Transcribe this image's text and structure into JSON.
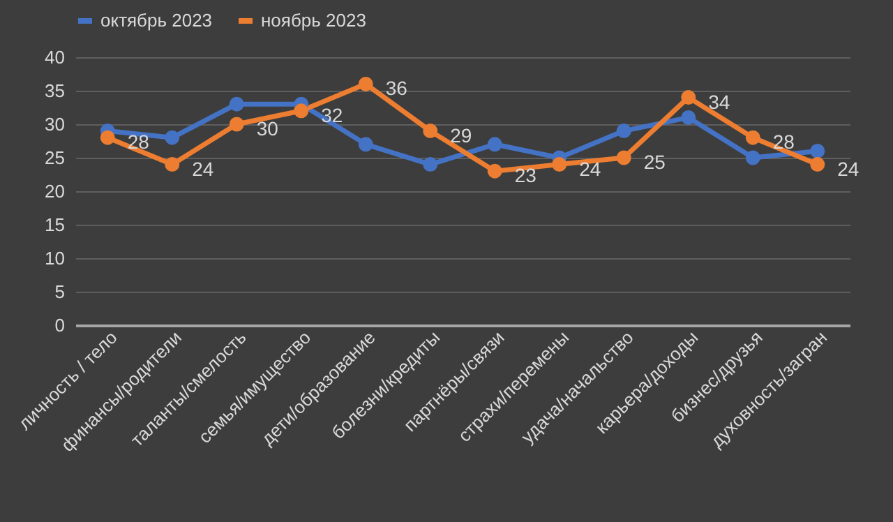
{
  "chart_data": {
    "type": "line",
    "categories": [
      "личность / тело",
      "финансы/родители",
      "таланты/смелость",
      "семья/имущество",
      "дети/образование",
      "болезни/кредиты",
      "партнёры/связи",
      "страхи/перемены",
      "удача/начальство",
      "карьера/доходы",
      "бизнес/друзья",
      "духовность/загран"
    ],
    "series": [
      {
        "name": "октябрь 2023",
        "color": "#4472c4",
        "values": [
          29,
          28,
          33,
          33,
          27,
          24,
          27,
          25,
          29,
          31,
          25,
          26
        ]
      },
      {
        "name": "ноябрь 2023",
        "color": "#ed7d31",
        "values": [
          28,
          24,
          30,
          32,
          36,
          29,
          23,
          24,
          25,
          34,
          28,
          24
        ],
        "value_labels": [
          "28",
          "24",
          "30",
          "32",
          "36",
          "29",
          "23",
          "24",
          "25",
          "34",
          "28",
          "24"
        ]
      }
    ],
    "ylim": [
      0,
      40
    ],
    "yticks": [
      0,
      5,
      10,
      15,
      20,
      25,
      30,
      35,
      40
    ],
    "grid": "y",
    "legend": "top",
    "marker": "circle",
    "line_style": "solid"
  }
}
